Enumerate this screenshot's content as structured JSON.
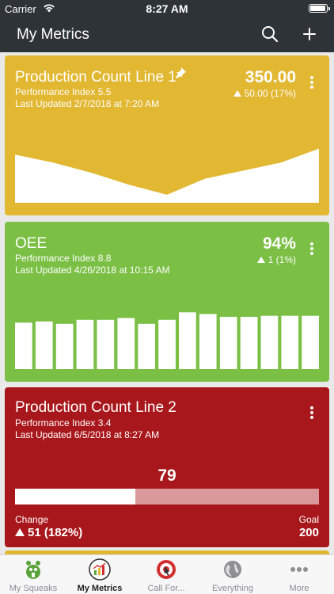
{
  "status_bar": {
    "carrier": "Carrier",
    "time": "8:27 AM",
    "wifi_icon": "wifi-icon",
    "battery_icon": "battery-icon"
  },
  "nav": {
    "title": "My Metrics",
    "search_icon": "search-icon",
    "add_icon": "plus-icon"
  },
  "colors": {
    "yellow": "#e2b731",
    "green": "#7bbf45",
    "red": "#a8171b",
    "nav": "#2e3338",
    "accent_red": "#d32f2f"
  },
  "cards": [
    {
      "title": "Production Count Line 1",
      "index": "Performance Index 5.5",
      "updated": "Last Updated 2/7/2018 at 7:20 AM",
      "value": "350.00",
      "change": "50.00 (17%)",
      "pinned": true,
      "chart": {
        "type": "area",
        "values": [
          48,
          40,
          30,
          18,
          8,
          24,
          32,
          40,
          54
        ]
      }
    },
    {
      "title": "OEE",
      "index": "Performance Index 8.8",
      "updated": "Last Updated 4/26/2018 at 10:15 AM",
      "value": "94%",
      "change": "1 (1%)",
      "chart": {
        "type": "bar",
        "values": [
          81,
          83,
          79,
          86,
          86,
          89,
          79,
          86,
          99,
          96,
          91,
          91,
          93,
          93,
          93
        ]
      }
    },
    {
      "title": "Production Count Line 2",
      "index": "Performance Index 3.4",
      "updated": "Last Updated 6/5/2018 at 8:27 AM",
      "value": "79",
      "progress_fraction": 0.395,
      "change_label": "Change",
      "change": "51 (182%)",
      "goal_label": "Goal",
      "goal_value": "200"
    }
  ],
  "tabs": [
    {
      "label": "My Squeaks",
      "icon": "squeaks-icon",
      "active": false
    },
    {
      "label": "My Metrics",
      "icon": "metrics-icon",
      "active": true
    },
    {
      "label": "Call For...",
      "icon": "call-for-icon",
      "active": false
    },
    {
      "label": "Everything",
      "icon": "globe-icon",
      "active": false
    },
    {
      "label": "More",
      "icon": "more-icon",
      "active": false
    }
  ]
}
